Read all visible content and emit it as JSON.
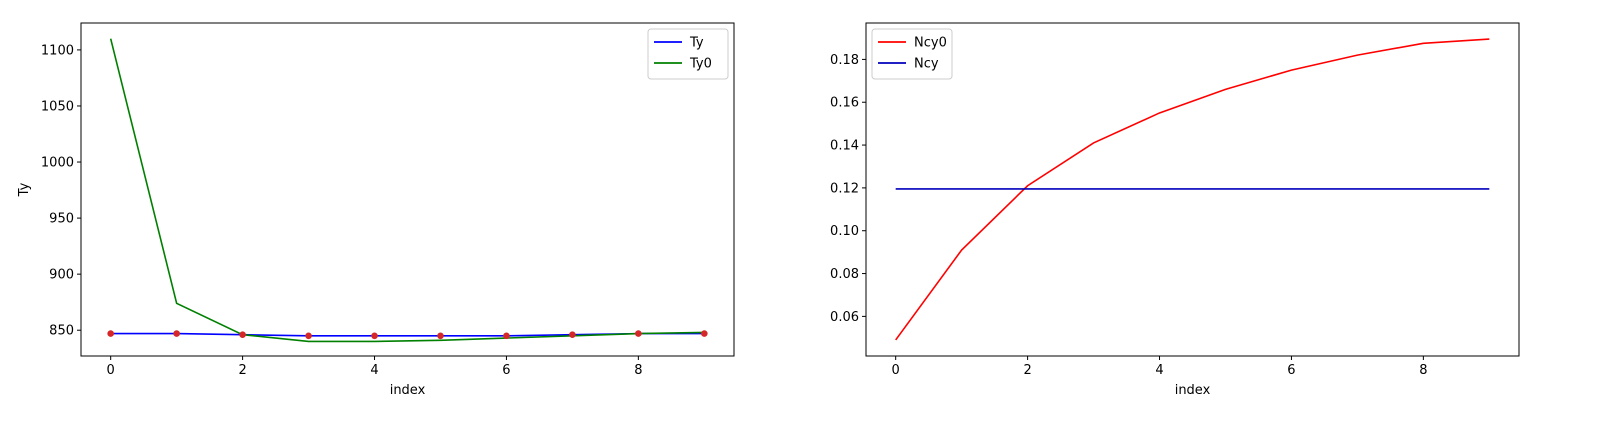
{
  "chart_data": [
    {
      "type": "line",
      "xlabel": "index",
      "ylabel": "Ty",
      "xlim": [
        -0.45,
        9.45
      ],
      "ylim": [
        827,
        1124
      ],
      "xticks": [
        0,
        2,
        4,
        6,
        8
      ],
      "yticks": [
        850,
        900,
        950,
        1000,
        1050,
        1100
      ],
      "legend_position": "top-right",
      "x": [
        0,
        1,
        2,
        3,
        4,
        5,
        6,
        7,
        8,
        9
      ],
      "series": [
        {
          "name": "Ty",
          "color": "#0000ff",
          "values": [
            847,
            847,
            846,
            845,
            845,
            845,
            845,
            846,
            847,
            847
          ]
        },
        {
          "name": "Ty0",
          "color": "#008000",
          "values": [
            1110,
            874,
            846,
            840,
            840,
            841,
            843,
            845,
            847,
            848
          ]
        }
      ],
      "markers": {
        "color": "#d62728",
        "values": [
          847,
          847,
          846,
          845,
          845,
          845,
          845,
          846,
          847,
          847
        ]
      }
    },
    {
      "type": "line",
      "xlabel": "index",
      "ylabel": "",
      "xlim": [
        -0.45,
        9.45
      ],
      "ylim": [
        0.0415,
        0.197
      ],
      "xticks": [
        0,
        2,
        4,
        6,
        8
      ],
      "yticks": [
        "0.06",
        "0.08",
        "0.10",
        "0.12",
        "0.14",
        "0.16",
        "0.18"
      ],
      "legend_position": "top-left",
      "x": [
        0,
        1,
        2,
        3,
        4,
        5,
        6,
        7,
        8,
        9
      ],
      "series": [
        {
          "name": "Ncy0",
          "color": "#ff0000",
          "values": [
            0.049,
            0.091,
            0.121,
            0.141,
            0.155,
            0.166,
            0.175,
            0.182,
            0.1875,
            0.1895
          ]
        },
        {
          "name": "Ncy",
          "color": "#0000bb",
          "values": [
            0.1195,
            0.1195,
            0.1195,
            0.1195,
            0.1195,
            0.1195,
            0.1195,
            0.1195,
            0.1195,
            0.1195
          ]
        }
      ]
    }
  ]
}
